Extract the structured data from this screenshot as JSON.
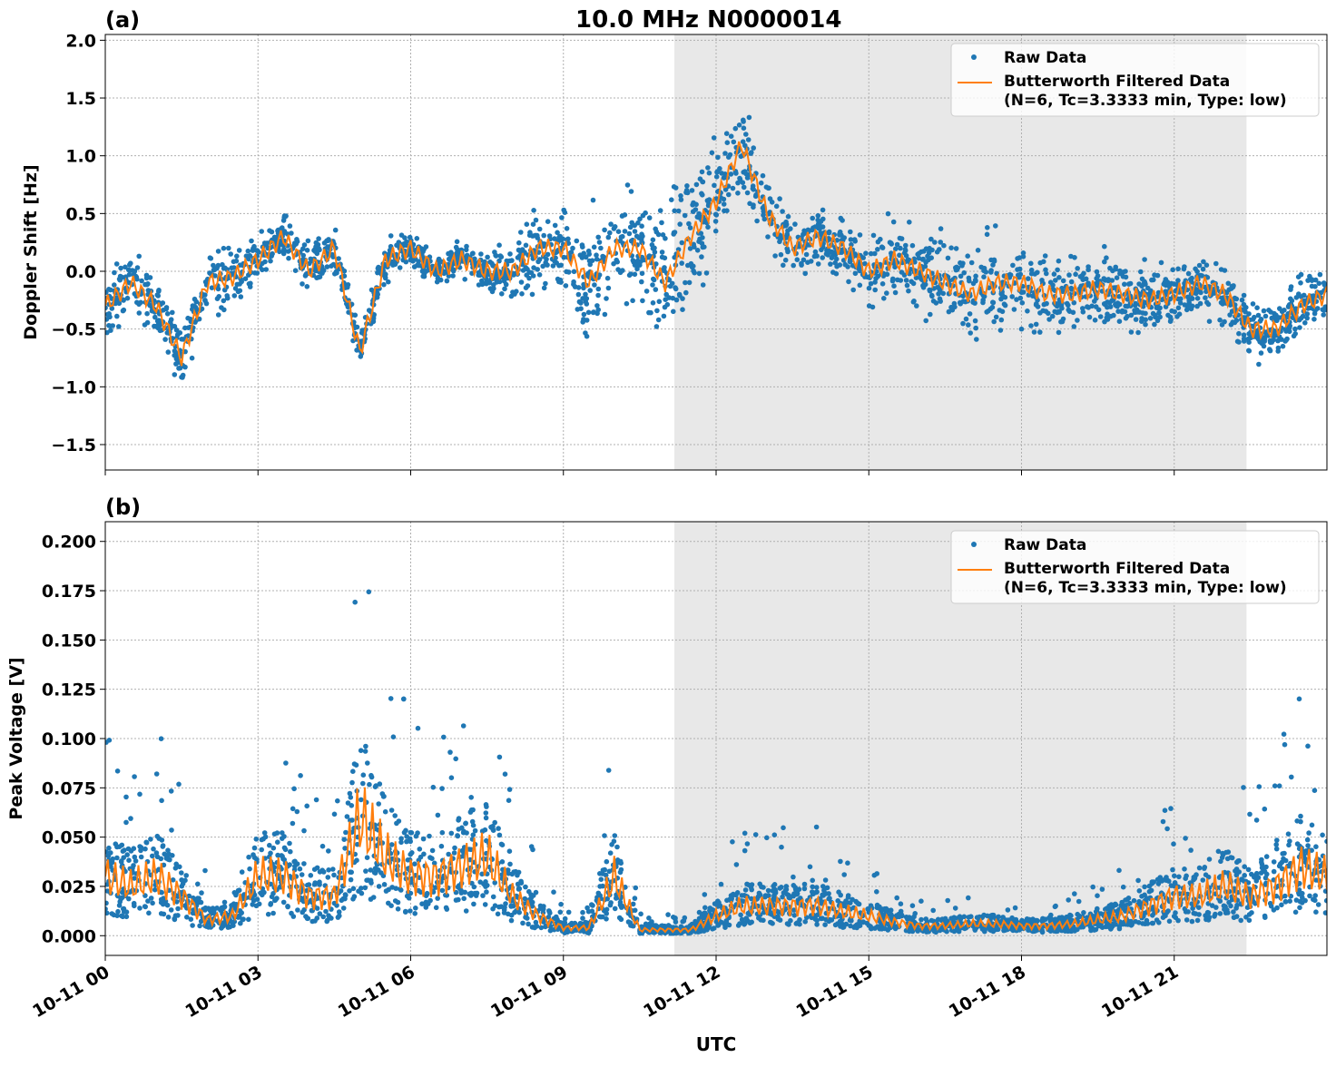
{
  "chart_data": [
    {
      "type": "scatter+line",
      "panel_label": "(a)",
      "title": "10.0 MHz N0000014",
      "ylabel": "Doppler Shift [Hz]",
      "ylim": [
        -1.72,
        2.05
      ],
      "yticks": [
        2.0,
        1.5,
        1.0,
        0.5,
        0.0,
        -0.5,
        -1.0,
        -1.5
      ],
      "ytick_labels": [
        "2.0",
        "1.5",
        "1.0",
        "0.5",
        "0.0",
        "−0.5",
        "−1.0",
        "−1.5"
      ],
      "legend": [
        "Raw Data",
        "Butterworth Filtered Data",
        "(N=6, Tc=3.3333 min, Type: low)"
      ],
      "legend_position": "top-right",
      "grid": true,
      "shaded_hours": [
        11.18,
        22.42
      ],
      "filtered_hours_step": 0.5,
      "filtered": [
        -0.3,
        -0.1,
        -0.3,
        -0.75,
        -0.1,
        -0.05,
        0.1,
        0.3,
        0.0,
        0.2,
        -0.7,
        0.1,
        0.2,
        0.0,
        0.1,
        0.0,
        0.0,
        0.2,
        0.2,
        -0.1,
        0.2,
        0.2,
        -0.1,
        0.3,
        0.6,
        1.1,
        0.5,
        0.2,
        0.3,
        0.2,
        0.0,
        0.1,
        0.0,
        -0.1,
        -0.2,
        -0.1,
        -0.1,
        -0.2,
        -0.2,
        -0.15,
        -0.2,
        -0.25,
        -0.2,
        -0.1,
        -0.2,
        -0.5,
        -0.5,
        -0.3,
        -0.2
      ],
      "raw_spread": [
        0.3,
        0.3,
        0.3,
        0.3,
        0.35,
        0.3,
        0.25,
        0.25,
        0.25,
        0.2,
        0.2,
        0.2,
        0.15,
        0.15,
        0.15,
        0.2,
        0.3,
        0.35,
        0.5,
        0.7,
        0.5,
        0.6,
        0.7,
        0.7,
        0.5,
        0.45,
        0.35,
        0.3,
        0.3,
        0.3,
        0.35,
        0.4,
        0.4,
        0.4,
        0.45,
        0.45,
        0.4,
        0.4,
        0.35,
        0.35,
        0.35,
        0.35,
        0.3,
        0.3,
        0.3,
        0.3,
        0.3,
        0.3,
        0.3
      ]
    },
    {
      "type": "scatter+line",
      "panel_label": "(b)",
      "xlabel": "UTC",
      "ylabel": "Peak Voltage [V]",
      "ylim": [
        -0.01,
        0.21
      ],
      "yticks": [
        0.0,
        0.025,
        0.05,
        0.075,
        0.1,
        0.125,
        0.15,
        0.175,
        0.2
      ],
      "ytick_labels": [
        "0.000",
        "0.025",
        "0.050",
        "0.075",
        "0.100",
        "0.125",
        "0.150",
        "0.175",
        "0.200"
      ],
      "xlim_hours": [
        0,
        24
      ],
      "xticks_hours": [
        0,
        3,
        6,
        9,
        12,
        15,
        18,
        21
      ],
      "xtick_labels": [
        "10-11 00",
        "10-11 03",
        "10-11 06",
        "10-11 09",
        "10-11 12",
        "10-11 15",
        "10-11 18",
        "10-11 21"
      ],
      "legend": [
        "Raw Data",
        "Butterworth Filtered Data",
        "(N=6, Tc=3.3333 min, Type: low)"
      ],
      "legend_position": "top-right",
      "grid": true,
      "shaded_hours": [
        11.18,
        22.42
      ],
      "filtered_hours_step": 0.5,
      "filtered": [
        0.03,
        0.025,
        0.03,
        0.02,
        0.008,
        0.01,
        0.03,
        0.03,
        0.02,
        0.02,
        0.06,
        0.04,
        0.03,
        0.03,
        0.035,
        0.04,
        0.02,
        0.01,
        0.004,
        0.004,
        0.03,
        0.003,
        0.003,
        0.003,
        0.01,
        0.015,
        0.015,
        0.015,
        0.015,
        0.012,
        0.01,
        0.007,
        0.005,
        0.005,
        0.006,
        0.006,
        0.005,
        0.005,
        0.006,
        0.008,
        0.01,
        0.015,
        0.02,
        0.02,
        0.025,
        0.02,
        0.025,
        0.035,
        0.03
      ]
    }
  ],
  "colors": {
    "raw": "#1f77b4",
    "filtered": "#ff7f0e",
    "shade": "#e8e8e8"
  }
}
